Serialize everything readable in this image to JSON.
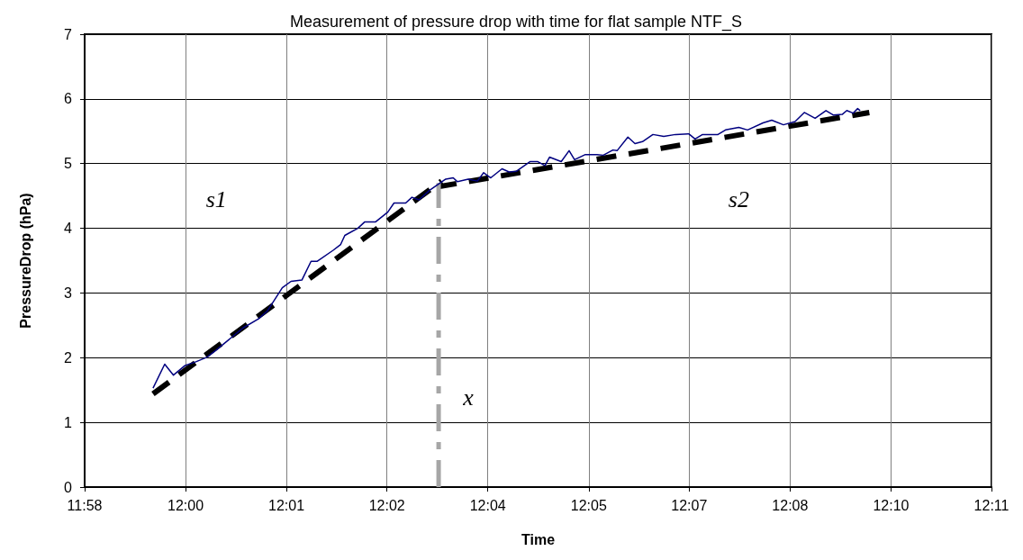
{
  "chart_data": {
    "type": "line",
    "title": "Measurement of pressure drop with time for flat sample NTF_S",
    "xlabel": "Time",
    "ylabel": "PressureDrop (hPa)",
    "xlim": [
      11.9683,
      12.1858
    ],
    "xticks": [
      {
        "value": 11.9683,
        "label": "11:58"
      },
      {
        "value": 11.9925,
        "label": "12:00"
      },
      {
        "value": 12.0167,
        "label": "12:01"
      },
      {
        "value": 12.0408,
        "label": "12:02"
      },
      {
        "value": 12.065,
        "label": "12:04"
      },
      {
        "value": 12.0892,
        "label": "12:05"
      },
      {
        "value": 12.1133,
        "label": "12:07"
      },
      {
        "value": 12.1375,
        "label": "12:08"
      },
      {
        "value": 12.1617,
        "label": "12:10"
      },
      {
        "value": 12.1858,
        "label": "12:11"
      }
    ],
    "ylim": [
      0,
      7
    ],
    "yticks": [
      0,
      1,
      2,
      3,
      4,
      5,
      6,
      7
    ],
    "grid": true,
    "marker": "none",
    "series": [
      {
        "color": "#000080",
        "line_style": "solid",
        "x": [
          11.9847,
          11.9875,
          11.9896,
          11.9924,
          11.9951,
          11.9977,
          11.9999,
          12.0063,
          12.01,
          12.0121,
          12.0157,
          12.0178,
          12.0204,
          12.0226,
          12.0241,
          12.0279,
          12.0297,
          12.0307,
          12.0338,
          12.0355,
          12.0381,
          12.041,
          12.0425,
          12.0453,
          12.0468,
          12.0485,
          12.0511,
          12.0549,
          12.0567,
          12.0577,
          12.0603,
          12.0625,
          12.064,
          12.0657,
          12.0684,
          12.0701,
          12.0718,
          12.0751,
          12.077,
          12.0787,
          12.0798,
          12.0826,
          12.0845,
          12.0858,
          12.0884,
          12.0912,
          12.0927,
          12.095,
          12.096,
          12.0986,
          12.1003,
          12.1021,
          12.1046,
          12.1072,
          12.11,
          12.1132,
          12.1147,
          12.1165,
          12.1202,
          12.122,
          12.1252,
          12.1273,
          12.131,
          12.1331,
          12.1359,
          12.1387,
          12.1409,
          12.1435,
          12.1461,
          12.1479,
          12.15,
          12.1511,
          12.1526,
          12.1537,
          12.1543
        ],
        "values": [
          1.53,
          1.9,
          1.73,
          1.88,
          1.94,
          2.01,
          2.12,
          2.46,
          2.6,
          2.72,
          3.08,
          3.18,
          3.2,
          3.49,
          3.49,
          3.66,
          3.75,
          3.89,
          4.0,
          4.1,
          4.1,
          4.25,
          4.39,
          4.39,
          4.48,
          4.44,
          4.59,
          4.76,
          4.78,
          4.72,
          4.76,
          4.73,
          4.86,
          4.78,
          4.92,
          4.87,
          4.88,
          5.03,
          5.03,
          4.97,
          5.1,
          5.03,
          5.2,
          5.06,
          5.14,
          5.14,
          5.13,
          5.21,
          5.2,
          5.41,
          5.31,
          5.34,
          5.45,
          5.42,
          5.45,
          5.46,
          5.38,
          5.45,
          5.45,
          5.52,
          5.56,
          5.52,
          5.63,
          5.67,
          5.6,
          5.65,
          5.79,
          5.7,
          5.82,
          5.75,
          5.76,
          5.82,
          5.78,
          5.85,
          5.82
        ]
      },
      {
        "color": "#000000",
        "line_style": "dashed",
        "x": [
          11.9847,
          12.0539
        ],
        "values": [
          1.44,
          4.73
        ]
      },
      {
        "color": "#000000",
        "line_style": "dashed",
        "x": [
          12.0528,
          12.1565
        ],
        "values": [
          4.64,
          5.79
        ]
      },
      {
        "color": "#a6a6a6",
        "line_style": "dashed",
        "x": [
          12.0532,
          12.0532
        ],
        "values": [
          0,
          4.7
        ]
      }
    ],
    "annotations": [
      {
        "text": "s1",
        "x": 11.9999,
        "y": 4.44
      },
      {
        "text": "s2",
        "x": 12.1252,
        "y": 4.44
      },
      {
        "text": "x",
        "x": 12.0603,
        "y": 1.39
      }
    ]
  }
}
